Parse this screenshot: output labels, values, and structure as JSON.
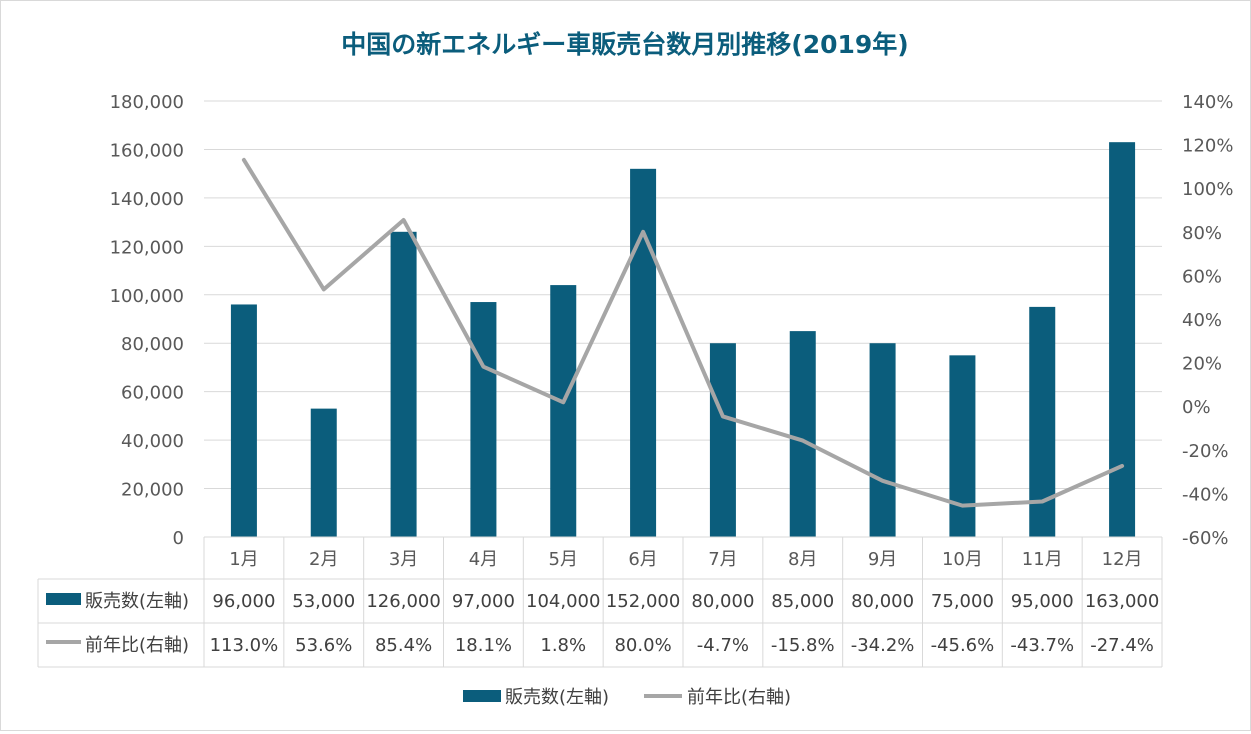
{
  "chart_data": {
    "type": "bar",
    "title": "中国の新エネルギー車販売台数月別推移(2019年)",
    "categories": [
      "1月",
      "2月",
      "3月",
      "4月",
      "5月",
      "6月",
      "7月",
      "8月",
      "9月",
      "10月",
      "11月",
      "12月"
    ],
    "series": [
      {
        "name": "販売数(左軸)",
        "type": "bar",
        "axis": "left",
        "color": "#0b5d7c",
        "values": [
          96000,
          53000,
          126000,
          97000,
          104000,
          152000,
          80000,
          85000,
          80000,
          75000,
          95000,
          163000
        ],
        "table_labels": [
          "96,000",
          "53,000",
          "126,000",
          "97,000",
          "104,000",
          "152,000",
          "80,000",
          "85,000",
          "80,000",
          "75,000",
          "95,000",
          "163,000"
        ]
      },
      {
        "name": "前年比(右軸)",
        "type": "line",
        "axis": "right",
        "color": "#a6a6a6",
        "values": [
          113.0,
          53.6,
          85.4,
          18.1,
          1.8,
          80.0,
          -4.7,
          -15.8,
          -34.2,
          -45.6,
          -43.7,
          -27.4
        ],
        "table_labels": [
          "113.0%",
          "53.6%",
          "85.4%",
          "18.1%",
          "1.8%",
          "80.0%",
          "-4.7%",
          "-15.8%",
          "-34.2%",
          "-45.6%",
          "-43.7%",
          "-27.4%"
        ]
      }
    ],
    "y_left": {
      "range": [
        0,
        180000
      ],
      "ticks": [
        0,
        20000,
        40000,
        60000,
        80000,
        100000,
        120000,
        140000,
        160000,
        180000
      ],
      "tick_labels": [
        "0",
        "20,000",
        "40,000",
        "60,000",
        "80,000",
        "100,000",
        "120,000",
        "140,000",
        "160,000",
        "180,000"
      ]
    },
    "y_right": {
      "range": [
        -60,
        140
      ],
      "ticks": [
        -60,
        -40,
        -20,
        0,
        20,
        40,
        60,
        80,
        100,
        120,
        140
      ],
      "tick_labels": [
        "-60%",
        "-40%",
        "-20%",
        "0%",
        "20%",
        "40%",
        "60%",
        "80%",
        "100%",
        "120%",
        "140%"
      ]
    },
    "grid": true,
    "data_table": true,
    "legend_position": "bottom"
  }
}
